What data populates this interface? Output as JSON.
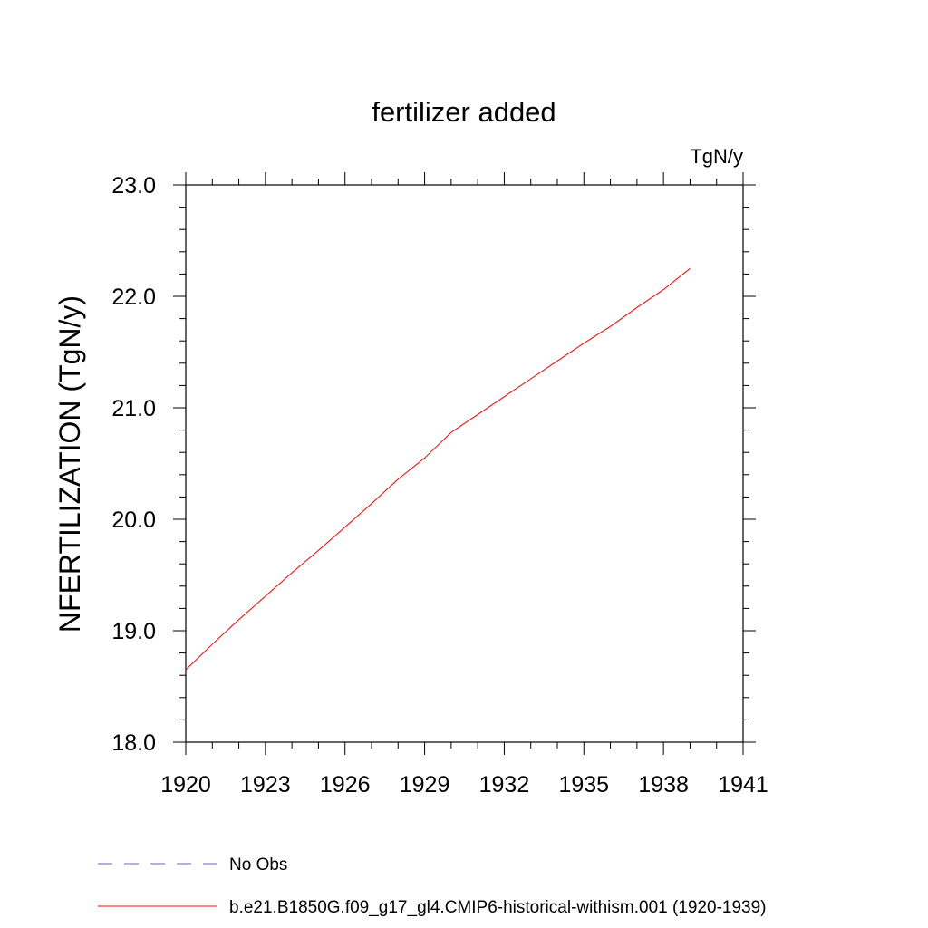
{
  "chart_data": {
    "type": "line",
    "title": "fertilizer added",
    "units_label": "TgN/y",
    "ylabel": "NFERTILIZATION  (TgN/y)",
    "xlabel": "",
    "xlim": [
      1920,
      1941
    ],
    "ylim": [
      18.0,
      23.0
    ],
    "x_ticks": [
      1920,
      1923,
      1926,
      1929,
      1932,
      1935,
      1938,
      1941
    ],
    "x_tick_labels": [
      "1920",
      "1923",
      "1926",
      "1929",
      "1932",
      "1935",
      "1938",
      "1941"
    ],
    "y_ticks": [
      18.0,
      19.0,
      20.0,
      21.0,
      22.0,
      23.0
    ],
    "y_tick_labels": [
      "18.0",
      "19.0",
      "20.0",
      "21.0",
      "22.0",
      "23.0"
    ],
    "grid": false,
    "legend_position": "bottom",
    "series": [
      {
        "name": "b.e21.B1850G.f09_g17_gl4.CMIP6-historical-withism.001 (1920-1939)",
        "color": "#ff0000",
        "style": "solid",
        "x": [
          1920,
          1921,
          1922,
          1923,
          1924,
          1925,
          1926,
          1927,
          1928,
          1929,
          1930,
          1931,
          1932,
          1933,
          1934,
          1935,
          1936,
          1937,
          1938,
          1939
        ],
        "y": [
          18.65,
          18.88,
          19.1,
          19.31,
          19.52,
          19.72,
          19.93,
          20.14,
          20.36,
          20.55,
          20.78,
          20.94,
          21.1,
          21.26,
          21.42,
          21.58,
          21.73,
          21.9,
          22.06,
          22.25
        ]
      }
    ],
    "legend": [
      {
        "label": "No Obs",
        "color": "#6a5acd",
        "style": "dashed"
      },
      {
        "label": "b.e21.B1850G.f09_g17_gl4.CMIP6-historical-withism.001 (1920-1939)",
        "color": "#ff0000",
        "style": "solid"
      }
    ]
  }
}
